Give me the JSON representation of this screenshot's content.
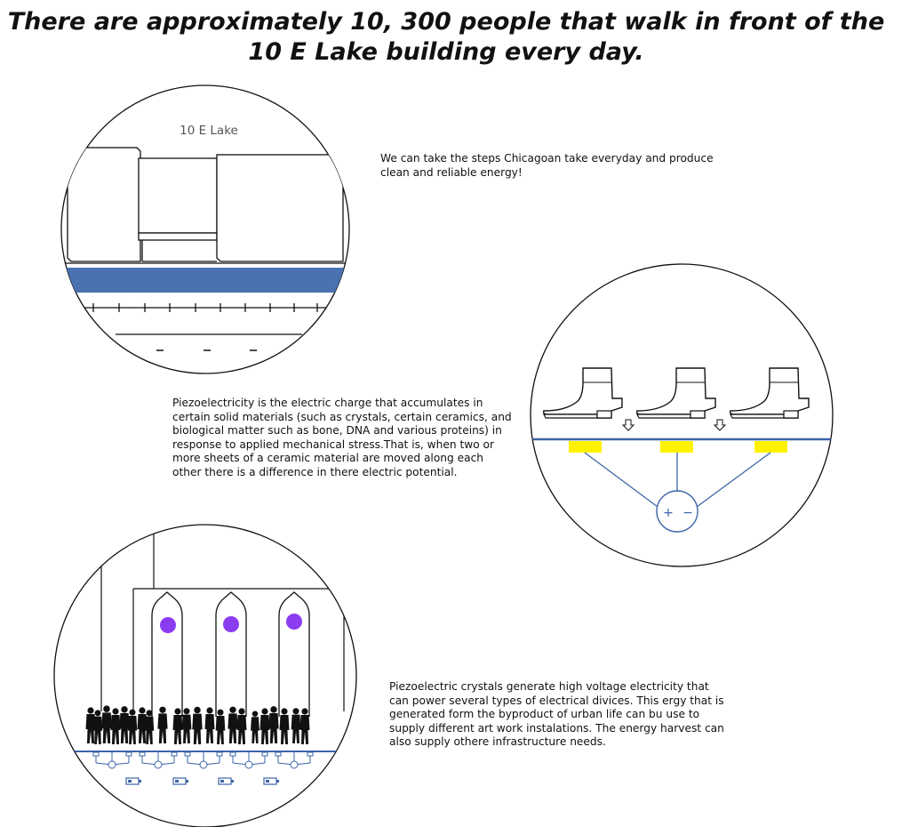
{
  "headline": "There are approximately 10, 300 people that walk in front of the 10 E Lake building every day.",
  "building_label": "10 E Lake",
  "paragraphs": {
    "steps": "We can take the steps Chicagoan take everyday and produce clean and reliable energy!",
    "piezo_definition": "Piezoelectricity is the electric charge that accumulates in certain solid materials (such as crystals, certain ceramics, and biological matter such as bone, DNA and various proteins) in response to applied mechanical stress.That is, when two or more sheets of a ceramic material are moved along each other there is a difference in there electric potential.",
    "crystals": "Piezoelectric crystals generate high voltage electricity that can power several types of electrical divices. This ergy that is generated form the byproduct of urban life can bu use to supply different art work instalations. The energy harvest can also supply othere infrastructure needs."
  },
  "circuit_symbols": {
    "plus": "+",
    "minus": "−"
  },
  "colors": {
    "sidewalk_blue": "#4a72b0",
    "circuit_blue": "#3c64a8",
    "piezo_yellow": "#fff200",
    "light_purple": "#8b3cf0",
    "ink": "#111111"
  }
}
